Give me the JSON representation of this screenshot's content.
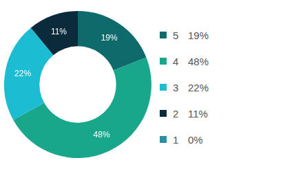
{
  "chart_data": {
    "type": "doughnut",
    "categories": [
      "5",
      "4",
      "3",
      "2",
      "1"
    ],
    "values": [
      19,
      48,
      22,
      11,
      0
    ],
    "value_labels": [
      "19%",
      "48%",
      "22%",
      "11%",
      "0%"
    ],
    "colors": [
      "#0f6a6b",
      "#19a78b",
      "#1cbdd2",
      "#0b2a3b",
      "#2b8da6"
    ],
    "data_labels": true,
    "legend": "right"
  }
}
